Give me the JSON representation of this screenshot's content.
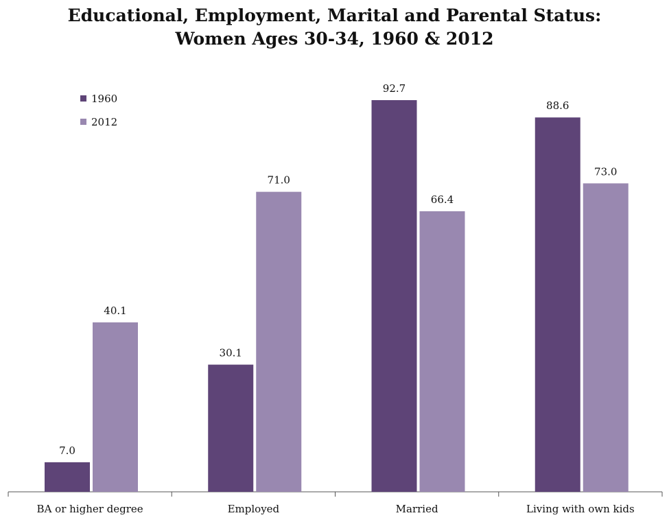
{
  "chart_data": {
    "type": "bar",
    "title_line1": "Educational, Employment, Marital and Parental Status:",
    "title_line2": "Women Ages 30-34, 1960 & 2012",
    "categories": [
      "BA or higher degree",
      "Employed",
      "Married",
      "Living with own kids"
    ],
    "series": [
      {
        "name": "1960",
        "values": [
          7.0,
          30.1,
          92.7,
          88.6
        ],
        "labels": [
          "7.0",
          "30.1",
          "92.7",
          "88.6"
        ],
        "color": "#5e4477"
      },
      {
        "name": "2012",
        "values": [
          40.1,
          71.0,
          66.4,
          73.0
        ],
        "labels": [
          "40.1",
          "71.0",
          "66.4",
          "73.0"
        ],
        "color": "#9988b0"
      }
    ],
    "ylim": [
      0,
      100
    ],
    "grid": false,
    "legend_position": "top-left",
    "xlabel": "",
    "ylabel": ""
  }
}
